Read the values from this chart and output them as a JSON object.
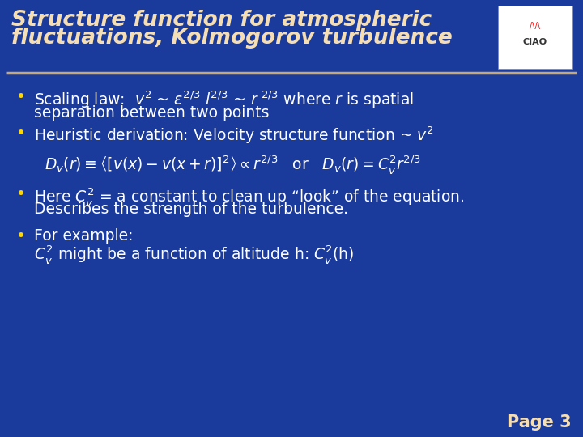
{
  "bg_color": "#1A3A9C",
  "title_text_line1": "Structure function for atmospheric",
  "title_text_line2": "fluctuations, Kolmogorov turbulence",
  "title_color": "#F5DEB3",
  "title_fontsize": 19,
  "header_line_color": "#C8A870",
  "bullet_color": "#FFD700",
  "text_color": "#FFFFFF",
  "text_fontsize": 13.5,
  "page_label": "Page 3",
  "page_color": "#F5DEB3",
  "page_fontsize": 15,
  "bullet1_line1": "Scaling law:  $v^2$ ~ $\\varepsilon^{2/3}$ $l^{2/3}$ ~ $r^{\\ 2/3}$ where $r$ is spatial",
  "bullet1_line2": "separation between two points",
  "bullet2_line1": "Heuristic derivation: Velocity structure function ~ $v^2$",
  "formula": "$D_v(r) \\equiv \\left\\langle\\left[v(x)-v(x+r)\\right]^2\\right\\rangle \\propto r^{2/3}$   or   $D_v(r) = C_v^2 r^{2/3}$",
  "bullet3_line1": "Here $C_v^2$ = a constant to clean up “look” of the equation.",
  "bullet3_line2": "Describes the strength of the turbulence.",
  "bullet4_line1": "For example:",
  "bullet4_line2": "$C_v^2$ might be a function of altitude h: $C_v^2$(h)"
}
